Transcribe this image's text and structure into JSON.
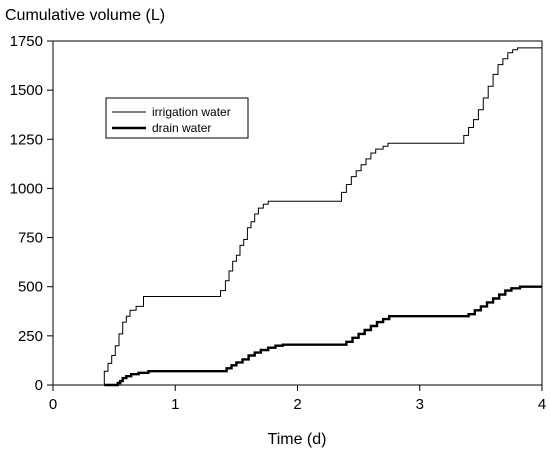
{
  "chart_data": {
    "type": "line",
    "title": "",
    "ylabel": "Cumulative volume (L)",
    "xlabel": "Time (d)",
    "xlim": [
      0,
      4
    ],
    "ylim": [
      0,
      1750
    ],
    "x_ticks": [
      0,
      1,
      2,
      3,
      4
    ],
    "y_ticks": [
      0,
      250,
      500,
      750,
      1000,
      1250,
      1500,
      1750
    ],
    "grid": false,
    "legend": {
      "placement": "upper-left"
    },
    "series": [
      {
        "name": "irrigation water",
        "style": "step",
        "color": "#000000",
        "points": [
          [
            0.0,
            0
          ],
          [
            0.42,
            0
          ],
          [
            0.42,
            70
          ],
          [
            0.45,
            70
          ],
          [
            0.45,
            110
          ],
          [
            0.48,
            110
          ],
          [
            0.48,
            150
          ],
          [
            0.51,
            150
          ],
          [
            0.51,
            200
          ],
          [
            0.54,
            200
          ],
          [
            0.54,
            260
          ],
          [
            0.57,
            260
          ],
          [
            0.57,
            320
          ],
          [
            0.6,
            320
          ],
          [
            0.6,
            350
          ],
          [
            0.63,
            350
          ],
          [
            0.63,
            380
          ],
          [
            0.68,
            380
          ],
          [
            0.68,
            400
          ],
          [
            0.74,
            400
          ],
          [
            0.74,
            450
          ],
          [
            1.37,
            450
          ],
          [
            1.37,
            480
          ],
          [
            1.41,
            480
          ],
          [
            1.41,
            530
          ],
          [
            1.44,
            530
          ],
          [
            1.44,
            580
          ],
          [
            1.47,
            580
          ],
          [
            1.47,
            630
          ],
          [
            1.5,
            630
          ],
          [
            1.5,
            660
          ],
          [
            1.53,
            660
          ],
          [
            1.53,
            710
          ],
          [
            1.56,
            710
          ],
          [
            1.56,
            740
          ],
          [
            1.59,
            740
          ],
          [
            1.59,
            800
          ],
          [
            1.62,
            800
          ],
          [
            1.62,
            830
          ],
          [
            1.65,
            830
          ],
          [
            1.65,
            870
          ],
          [
            1.68,
            870
          ],
          [
            1.68,
            900
          ],
          [
            1.72,
            900
          ],
          [
            1.72,
            920
          ],
          [
            1.76,
            920
          ],
          [
            1.76,
            935
          ],
          [
            2.36,
            935
          ],
          [
            2.36,
            980
          ],
          [
            2.4,
            980
          ],
          [
            2.4,
            1020
          ],
          [
            2.44,
            1020
          ],
          [
            2.44,
            1060
          ],
          [
            2.48,
            1060
          ],
          [
            2.48,
            1090
          ],
          [
            2.52,
            1090
          ],
          [
            2.52,
            1120
          ],
          [
            2.56,
            1120
          ],
          [
            2.56,
            1150
          ],
          [
            2.6,
            1150
          ],
          [
            2.6,
            1180
          ],
          [
            2.64,
            1180
          ],
          [
            2.64,
            1200
          ],
          [
            2.7,
            1200
          ],
          [
            2.7,
            1215
          ],
          [
            2.74,
            1215
          ],
          [
            2.74,
            1230
          ],
          [
            3.36,
            1230
          ],
          [
            3.36,
            1270
          ],
          [
            3.4,
            1270
          ],
          [
            3.4,
            1310
          ],
          [
            3.44,
            1310
          ],
          [
            3.44,
            1350
          ],
          [
            3.48,
            1350
          ],
          [
            3.48,
            1400
          ],
          [
            3.52,
            1400
          ],
          [
            3.52,
            1460
          ],
          [
            3.56,
            1460
          ],
          [
            3.56,
            1520
          ],
          [
            3.6,
            1520
          ],
          [
            3.6,
            1580
          ],
          [
            3.64,
            1580
          ],
          [
            3.64,
            1630
          ],
          [
            3.68,
            1630
          ],
          [
            3.68,
            1660
          ],
          [
            3.72,
            1660
          ],
          [
            3.72,
            1690
          ],
          [
            3.76,
            1690
          ],
          [
            3.76,
            1705
          ],
          [
            3.8,
            1705
          ],
          [
            3.8,
            1715
          ],
          [
            4.0,
            1715
          ]
        ]
      },
      {
        "name": "drain water",
        "style": "step",
        "color": "#000000",
        "points": [
          [
            0.42,
            0
          ],
          [
            0.53,
            0
          ],
          [
            0.53,
            10
          ],
          [
            0.55,
            10
          ],
          [
            0.55,
            20
          ],
          [
            0.57,
            20
          ],
          [
            0.57,
            35
          ],
          [
            0.6,
            35
          ],
          [
            0.6,
            45
          ],
          [
            0.64,
            45
          ],
          [
            0.64,
            55
          ],
          [
            0.7,
            55
          ],
          [
            0.7,
            62
          ],
          [
            0.78,
            62
          ],
          [
            0.78,
            70
          ],
          [
            1.42,
            70
          ],
          [
            1.42,
            85
          ],
          [
            1.46,
            85
          ],
          [
            1.46,
            100
          ],
          [
            1.5,
            100
          ],
          [
            1.5,
            115
          ],
          [
            1.55,
            115
          ],
          [
            1.55,
            130
          ],
          [
            1.6,
            130
          ],
          [
            1.6,
            150
          ],
          [
            1.65,
            150
          ],
          [
            1.65,
            165
          ],
          [
            1.7,
            165
          ],
          [
            1.7,
            178
          ],
          [
            1.76,
            178
          ],
          [
            1.76,
            190
          ],
          [
            1.82,
            190
          ],
          [
            1.82,
            200
          ],
          [
            1.88,
            200
          ],
          [
            1.88,
            205
          ],
          [
            2.4,
            205
          ],
          [
            2.4,
            220
          ],
          [
            2.45,
            220
          ],
          [
            2.45,
            240
          ],
          [
            2.5,
            240
          ],
          [
            2.5,
            260
          ],
          [
            2.55,
            260
          ],
          [
            2.55,
            280
          ],
          [
            2.6,
            280
          ],
          [
            2.6,
            300
          ],
          [
            2.65,
            300
          ],
          [
            2.65,
            320
          ],
          [
            2.7,
            320
          ],
          [
            2.7,
            335
          ],
          [
            2.75,
            335
          ],
          [
            2.75,
            350
          ],
          [
            3.4,
            350
          ],
          [
            3.4,
            360
          ],
          [
            3.45,
            360
          ],
          [
            3.45,
            380
          ],
          [
            3.5,
            380
          ],
          [
            3.5,
            400
          ],
          [
            3.55,
            400
          ],
          [
            3.55,
            420
          ],
          [
            3.6,
            420
          ],
          [
            3.6,
            440
          ],
          [
            3.65,
            440
          ],
          [
            3.65,
            460
          ],
          [
            3.7,
            460
          ],
          [
            3.7,
            480
          ],
          [
            3.75,
            480
          ],
          [
            3.75,
            492
          ],
          [
            3.82,
            492
          ],
          [
            3.82,
            500
          ],
          [
            4.0,
            500
          ]
        ]
      }
    ]
  }
}
